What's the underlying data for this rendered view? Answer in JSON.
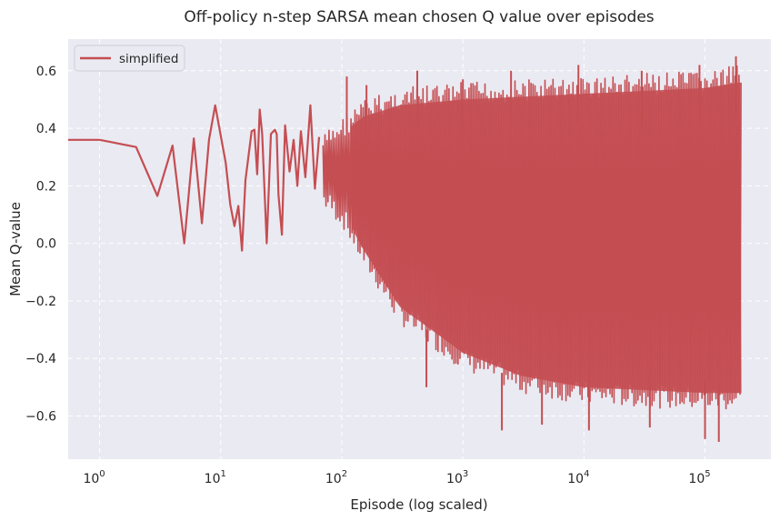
{
  "chart_data": {
    "type": "line",
    "title": "Off-policy n-step SARSA mean chosen Q value over episodes",
    "xlabel": "Episode (log scaled)",
    "ylabel": "Mean Q-value",
    "xscale": "log",
    "xlim": [
      0.55,
      350000
    ],
    "ylim": [
      -0.75,
      0.71
    ],
    "grid": true,
    "legend": "upper-left",
    "background": "#eaeaf2",
    "xticks": [
      {
        "base": "10",
        "exp": "0",
        "value": 1
      },
      {
        "base": "10",
        "exp": "1",
        "value": 10
      },
      {
        "base": "10",
        "exp": "2",
        "value": 100
      },
      {
        "base": "10",
        "exp": "3",
        "value": 1000
      },
      {
        "base": "10",
        "exp": "4",
        "value": 10000
      },
      {
        "base": "10",
        "exp": "5",
        "value": 100000
      }
    ],
    "yticks": [
      {
        "label": "0.6",
        "value": 0.6
      },
      {
        "label": "0.4",
        "value": 0.4
      },
      {
        "label": "0.2",
        "value": 0.2
      },
      {
        "label": "0.0",
        "value": 0.0
      },
      {
        "label": "−0.2",
        "value": -0.2
      },
      {
        "label": "−0.4",
        "value": -0.4
      },
      {
        "label": "−0.6",
        "value": -0.6
      }
    ],
    "series": [
      {
        "name": "simplified",
        "color": "#c44e52",
        "points": [
          [
            0.55,
            0.36
          ],
          [
            1,
            0.36
          ],
          [
            2,
            0.335
          ],
          [
            3,
            0.165
          ],
          [
            4,
            0.34
          ],
          [
            5,
            0.0
          ],
          [
            6,
            0.365
          ],
          [
            7,
            0.07
          ],
          [
            8,
            0.36
          ],
          [
            9,
            0.48
          ],
          [
            11,
            0.28
          ],
          [
            12,
            0.135
          ],
          [
            13,
            0.06
          ],
          [
            14,
            0.13
          ],
          [
            15,
            -0.025
          ],
          [
            16,
            0.22
          ],
          [
            18,
            0.39
          ],
          [
            19,
            0.395
          ],
          [
            20,
            0.24
          ],
          [
            21,
            0.465
          ],
          [
            22,
            0.38
          ],
          [
            24,
            0.0
          ],
          [
            26,
            0.38
          ],
          [
            28,
            0.395
          ],
          [
            29,
            0.38
          ],
          [
            30,
            0.17
          ],
          [
            32,
            0.03
          ],
          [
            34,
            0.41
          ],
          [
            37,
            0.25
          ],
          [
            40,
            0.36
          ],
          [
            43,
            0.2
          ],
          [
            46,
            0.39
          ],
          [
            50,
            0.23
          ],
          [
            55,
            0.48
          ],
          [
            60,
            0.19
          ],
          [
            65,
            0.37
          ]
        ],
        "band": {
          "from_episode": 70,
          "to_episode": 200000,
          "upper": [
            [
              70,
              0.38
            ],
            [
              100,
              0.44
            ],
            [
              150,
              0.5
            ],
            [
              300,
              0.54
            ],
            [
              1000,
              0.56
            ],
            [
              10000,
              0.58
            ],
            [
              100000,
              0.6
            ],
            [
              200000,
              0.62
            ]
          ],
          "lower": [
            [
              70,
              0.12
            ],
            [
              100,
              0.06
            ],
            [
              150,
              -0.08
            ],
            [
              300,
              -0.28
            ],
            [
              1000,
              -0.44
            ],
            [
              3000,
              -0.52
            ],
            [
              10000,
              -0.56
            ],
            [
              100000,
              -0.58
            ],
            [
              200000,
              -0.58
            ]
          ],
          "spikes_high": [
            [
              110,
              0.58
            ],
            [
              160,
              0.55
            ],
            [
              420,
              0.6
            ],
            [
              1000,
              0.57
            ],
            [
              2500,
              0.6
            ],
            [
              9000,
              0.62
            ],
            [
              30000,
              0.6
            ],
            [
              90000,
              0.62
            ],
            [
              180000,
              0.65
            ]
          ],
          "spikes_low": [
            [
              500,
              -0.5
            ],
            [
              2100,
              -0.65
            ],
            [
              4500,
              -0.63
            ],
            [
              11000,
              -0.65
            ],
            [
              35000,
              -0.64
            ],
            [
              100000,
              -0.68
            ],
            [
              130000,
              -0.69
            ]
          ]
        }
      }
    ]
  }
}
